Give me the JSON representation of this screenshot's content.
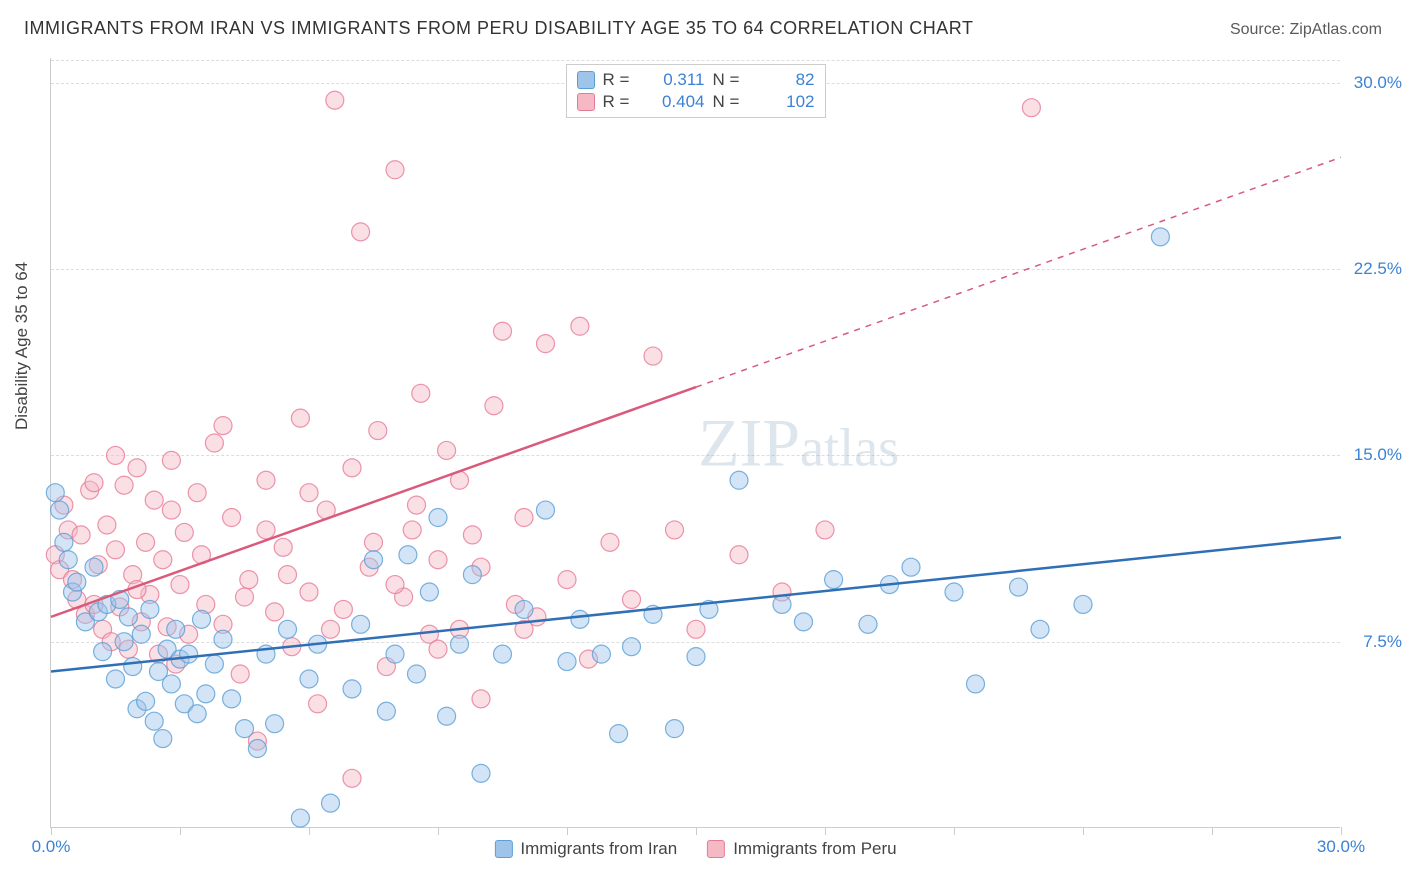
{
  "header": {
    "title": "IMMIGRANTS FROM IRAN VS IMMIGRANTS FROM PERU DISABILITY AGE 35 TO 64 CORRELATION CHART",
    "source": "Source: ZipAtlas.com"
  },
  "chart": {
    "type": "scatter",
    "ylabel": "Disability Age 35 to 64",
    "xlim": [
      0,
      30
    ],
    "ylim": [
      0,
      31
    ],
    "xtick_positions": [
      0,
      3,
      6,
      9,
      12,
      15,
      18,
      21,
      24,
      27,
      30
    ],
    "xtick_labels": {
      "0": "0.0%",
      "30": "30.0%"
    },
    "ytick_positions": [
      7.5,
      15.0,
      22.5,
      30.0
    ],
    "ytick_labels": [
      "7.5%",
      "15.0%",
      "22.5%",
      "30.0%"
    ],
    "grid_color": "#dddddd",
    "background_color": "#ffffff",
    "axis_color": "#cccccc",
    "tick_label_color": "#3b82d6",
    "ylabel_color": "#444444",
    "marker_radius": 9,
    "marker_opacity": 0.45,
    "line_width": 2.5,
    "watermark": "ZIPatlas",
    "series": {
      "iran": {
        "label": "Immigrants from Iran",
        "color_fill": "#9ec4ea",
        "color_stroke": "#5a9fd6",
        "trend_color": "#2f6fb5",
        "r": "0.311",
        "n": "82",
        "trend": {
          "x1": 0,
          "y1": 6.3,
          "x2": 30,
          "y2": 11.7,
          "dash_from_x": 30
        },
        "points": [
          [
            0.1,
            13.5
          ],
          [
            0.2,
            12.8
          ],
          [
            0.3,
            11.5
          ],
          [
            0.4,
            10.8
          ],
          [
            0.5,
            9.5
          ],
          [
            0.6,
            9.9
          ],
          [
            0.8,
            8.3
          ],
          [
            1.0,
            10.5
          ],
          [
            1.1,
            8.7
          ],
          [
            1.2,
            7.1
          ],
          [
            1.3,
            9.0
          ],
          [
            1.5,
            6.0
          ],
          [
            1.6,
            9.2
          ],
          [
            1.7,
            7.5
          ],
          [
            1.8,
            8.5
          ],
          [
            1.9,
            6.5
          ],
          [
            2.0,
            4.8
          ],
          [
            2.1,
            7.8
          ],
          [
            2.2,
            5.1
          ],
          [
            2.3,
            8.8
          ],
          [
            2.4,
            4.3
          ],
          [
            2.5,
            6.3
          ],
          [
            2.6,
            3.6
          ],
          [
            2.7,
            7.2
          ],
          [
            2.8,
            5.8
          ],
          [
            2.9,
            8.0
          ],
          [
            3.0,
            6.8
          ],
          [
            3.1,
            5.0
          ],
          [
            3.2,
            7.0
          ],
          [
            3.4,
            4.6
          ],
          [
            3.5,
            8.4
          ],
          [
            3.6,
            5.4
          ],
          [
            3.8,
            6.6
          ],
          [
            4.0,
            7.6
          ],
          [
            4.2,
            5.2
          ],
          [
            4.5,
            4.0
          ],
          [
            4.8,
            3.2
          ],
          [
            5.0,
            7.0
          ],
          [
            5.2,
            4.2
          ],
          [
            5.5,
            8.0
          ],
          [
            5.8,
            0.4
          ],
          [
            6.0,
            6.0
          ],
          [
            6.2,
            7.4
          ],
          [
            6.5,
            1.0
          ],
          [
            7.0,
            5.6
          ],
          [
            7.2,
            8.2
          ],
          [
            7.5,
            10.8
          ],
          [
            7.8,
            4.7
          ],
          [
            8.0,
            7.0
          ],
          [
            8.3,
            11.0
          ],
          [
            8.5,
            6.2
          ],
          [
            8.8,
            9.5
          ],
          [
            9.0,
            12.5
          ],
          [
            9.2,
            4.5
          ],
          [
            9.5,
            7.4
          ],
          [
            9.8,
            10.2
          ],
          [
            10.0,
            2.2
          ],
          [
            10.5,
            7.0
          ],
          [
            11.0,
            8.8
          ],
          [
            11.5,
            12.8
          ],
          [
            12.0,
            6.7
          ],
          [
            12.3,
            8.4
          ],
          [
            12.8,
            7.0
          ],
          [
            13.2,
            3.8
          ],
          [
            13.5,
            7.3
          ],
          [
            14.0,
            8.6
          ],
          [
            14.5,
            4.0
          ],
          [
            15.0,
            6.9
          ],
          [
            15.3,
            8.8
          ],
          [
            16.0,
            14.0
          ],
          [
            17.0,
            9.0
          ],
          [
            17.5,
            8.3
          ],
          [
            18.2,
            10.0
          ],
          [
            19.0,
            8.2
          ],
          [
            19.5,
            9.8
          ],
          [
            20.0,
            10.5
          ],
          [
            21.0,
            9.5
          ],
          [
            21.5,
            5.8
          ],
          [
            22.5,
            9.7
          ],
          [
            25.8,
            23.8
          ],
          [
            23.0,
            8.0
          ],
          [
            24.0,
            9.0
          ]
        ]
      },
      "peru": {
        "label": "Immigrants from Peru",
        "color_fill": "#f5b9c5",
        "color_stroke": "#e77a96",
        "trend_color": "#d95a7a",
        "r": "0.404",
        "n": "102",
        "trend": {
          "x1": 0,
          "y1": 8.5,
          "x2": 30,
          "y2": 27.0,
          "dash_from_x": 15
        },
        "points": [
          [
            0.1,
            11.0
          ],
          [
            0.2,
            10.4
          ],
          [
            0.3,
            13.0
          ],
          [
            0.4,
            12.0
          ],
          [
            0.5,
            10.0
          ],
          [
            0.6,
            9.2
          ],
          [
            0.7,
            11.8
          ],
          [
            0.8,
            8.6
          ],
          [
            0.9,
            13.6
          ],
          [
            1.0,
            9.0
          ],
          [
            1.1,
            10.6
          ],
          [
            1.2,
            8.0
          ],
          [
            1.3,
            12.2
          ],
          [
            1.4,
            7.5
          ],
          [
            1.5,
            11.2
          ],
          [
            1.6,
            8.9
          ],
          [
            1.7,
            13.8
          ],
          [
            1.8,
            7.2
          ],
          [
            1.9,
            10.2
          ],
          [
            2.0,
            14.5
          ],
          [
            2.1,
            8.3
          ],
          [
            2.2,
            11.5
          ],
          [
            2.3,
            9.4
          ],
          [
            2.4,
            13.2
          ],
          [
            2.5,
            7.0
          ],
          [
            2.6,
            10.8
          ],
          [
            2.7,
            8.1
          ],
          [
            2.8,
            12.8
          ],
          [
            2.9,
            6.6
          ],
          [
            3.0,
            9.8
          ],
          [
            3.1,
            11.9
          ],
          [
            3.2,
            7.8
          ],
          [
            3.4,
            13.5
          ],
          [
            3.6,
            9.0
          ],
          [
            3.8,
            15.5
          ],
          [
            4.0,
            8.2
          ],
          [
            4.2,
            12.5
          ],
          [
            4.4,
            6.2
          ],
          [
            4.6,
            10.0
          ],
          [
            4.8,
            3.5
          ],
          [
            5.0,
            14.0
          ],
          [
            5.2,
            8.7
          ],
          [
            5.4,
            11.3
          ],
          [
            5.6,
            7.3
          ],
          [
            5.8,
            16.5
          ],
          [
            6.0,
            9.5
          ],
          [
            6.2,
            5.0
          ],
          [
            6.4,
            12.8
          ],
          [
            6.6,
            29.3
          ],
          [
            6.8,
            8.8
          ],
          [
            7.0,
            2.0
          ],
          [
            7.2,
            24.0
          ],
          [
            7.4,
            10.5
          ],
          [
            7.6,
            16.0
          ],
          [
            7.8,
            6.5
          ],
          [
            8.0,
            26.5
          ],
          [
            8.2,
            9.3
          ],
          [
            8.4,
            12.0
          ],
          [
            8.6,
            17.5
          ],
          [
            8.8,
            7.8
          ],
          [
            9.0,
            10.8
          ],
          [
            9.2,
            15.2
          ],
          [
            9.5,
            8.0
          ],
          [
            9.8,
            11.8
          ],
          [
            10.0,
            5.2
          ],
          [
            10.3,
            17.0
          ],
          [
            10.5,
            20.0
          ],
          [
            10.8,
            9.0
          ],
          [
            11.0,
            12.5
          ],
          [
            11.3,
            8.5
          ],
          [
            11.5,
            19.5
          ],
          [
            12.0,
            10.0
          ],
          [
            12.3,
            20.2
          ],
          [
            12.5,
            6.8
          ],
          [
            13.0,
            11.5
          ],
          [
            13.5,
            9.2
          ],
          [
            14.0,
            19.0
          ],
          [
            14.5,
            12.0
          ],
          [
            15.0,
            8.0
          ],
          [
            16.0,
            11.0
          ],
          [
            17.0,
            9.5
          ],
          [
            18.0,
            12.0
          ],
          [
            22.8,
            29.0
          ],
          [
            1.0,
            13.9
          ],
          [
            1.5,
            15.0
          ],
          [
            2.0,
            9.6
          ],
          [
            2.8,
            14.8
          ],
          [
            3.5,
            11.0
          ],
          [
            4.0,
            16.2
          ],
          [
            4.5,
            9.3
          ],
          [
            5.0,
            12.0
          ],
          [
            5.5,
            10.2
          ],
          [
            6.0,
            13.5
          ],
          [
            6.5,
            8.0
          ],
          [
            7.0,
            14.5
          ],
          [
            7.5,
            11.5
          ],
          [
            8.0,
            9.8
          ],
          [
            8.5,
            13.0
          ],
          [
            9.0,
            7.2
          ],
          [
            9.5,
            14.0
          ],
          [
            10.0,
            10.5
          ],
          [
            11.0,
            8.0
          ]
        ]
      }
    },
    "legend_bottom": [
      {
        "label": "Immigrants from Iran",
        "swatch_fill": "#9ec4ea",
        "swatch_stroke": "#5a9fd6"
      },
      {
        "label": "Immigrants from Peru",
        "swatch_fill": "#f5b9c5",
        "swatch_stroke": "#e77a96"
      }
    ]
  }
}
